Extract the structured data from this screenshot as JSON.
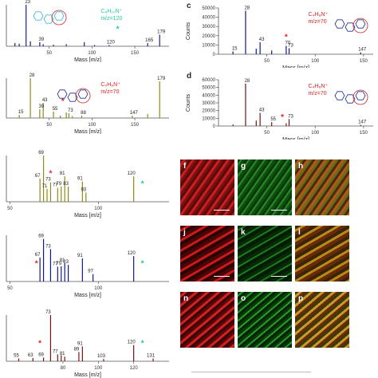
{
  "panel_labels": {
    "c": "c",
    "d": "d",
    "f": "f",
    "g": "g",
    "h": "h",
    "j": "j",
    "k": "k",
    "l": "l",
    "n": "n",
    "o": "o",
    "p": "p"
  },
  "colors": {
    "blue": "#1a237e",
    "olive": "#8d8a1a",
    "navy": "#0b1a8a",
    "maroon": "#7b1010",
    "red": "#e02020",
    "green": "#1ec8a0",
    "cyan_struct": "#36b6e0",
    "navy_struct": "#1a2f8a",
    "red_struct": "#cc2222"
  },
  "chart_data": [
    {
      "id": "a",
      "type": "bar",
      "color": "#1a237e",
      "xlabel": "Mass [m/z]",
      "xlim": [
        0,
        190
      ],
      "xticks": [
        50,
        100,
        150
      ],
      "ion": {
        "text": "C₈H₁₀N⁺",
        "mz": "m/z=120",
        "color": "#1ec8a0"
      },
      "peaks": [
        [
          10,
          8
        ],
        [
          15,
          6
        ],
        [
          23,
          100
        ],
        [
          28,
          12
        ],
        [
          39,
          10
        ],
        [
          43,
          5
        ],
        [
          55,
          4
        ],
        [
          70,
          5
        ],
        [
          91,
          10
        ],
        [
          103,
          3
        ],
        [
          120,
          3
        ],
        [
          165,
          8
        ],
        [
          179,
          28
        ]
      ],
      "labels": [
        {
          "x": 23,
          "t": "23"
        },
        {
          "x": 39,
          "t": "39"
        },
        {
          "x": 120,
          "t": "120"
        },
        {
          "x": 165,
          "t": "165"
        },
        {
          "x": 179,
          "t": "179"
        }
      ],
      "star": {
        "x": 130,
        "color": "#1ec8a0"
      }
    },
    {
      "id": "b",
      "type": "bar",
      "color": "#8d8a1a",
      "xlabel": "Mass [m/z]",
      "xlim": [
        0,
        190
      ],
      "xticks": [
        50,
        100,
        150
      ],
      "ion": {
        "text": "C₄H₈N⁺",
        "mz": "m/z=70",
        "color": "#e02020"
      },
      "peaks": [
        [
          15,
          8
        ],
        [
          28,
          100
        ],
        [
          39,
          22
        ],
        [
          43,
          38
        ],
        [
          55,
          16
        ],
        [
          63,
          6
        ],
        [
          70,
          14
        ],
        [
          73,
          12
        ],
        [
          77,
          5
        ],
        [
          88,
          6
        ],
        [
          147,
          6
        ],
        [
          165,
          10
        ],
        [
          179,
          92
        ]
      ],
      "labels": [
        {
          "x": 15,
          "t": "15"
        },
        {
          "x": 28,
          "t": "28"
        },
        {
          "x": 39,
          "t": "39"
        },
        {
          "x": 43,
          "t": "43"
        },
        {
          "x": 55,
          "t": "55"
        },
        {
          "x": 73,
          "t": "73"
        },
        {
          "x": 88,
          "t": "88"
        },
        {
          "x": 147,
          "t": "147"
        },
        {
          "x": 179,
          "t": "179"
        }
      ],
      "star": {
        "x": 66,
        "color": "#e02020"
      }
    },
    {
      "id": "c",
      "type": "bar",
      "color": "#0b1a8a",
      "xlabel": "Mass [m/z]",
      "ylabel": "Counts",
      "xlim": [
        0,
        160
      ],
      "ylim": [
        0,
        50000
      ],
      "yticks": [
        "0",
        "10000",
        "20000",
        "30000",
        "40000",
        "50000"
      ],
      "xticks": [
        50,
        100,
        150
      ],
      "ion": {
        "text": "C₄H₈N⁺",
        "mz": "m/z=70",
        "color": "#e02020"
      },
      "peaks": [
        [
          15,
          3000
        ],
        [
          28,
          47000
        ],
        [
          39,
          6000
        ],
        [
          43,
          13000
        ],
        [
          55,
          4000
        ],
        [
          70,
          9000
        ],
        [
          73,
          6500
        ],
        [
          147,
          2000
        ]
      ],
      "labels": [
        {
          "x": 15,
          "t": "15"
        },
        {
          "x": 28,
          "t": "28"
        },
        {
          "x": 43,
          "t": "43"
        },
        {
          "x": 70,
          "t": "70"
        },
        {
          "x": 73,
          "t": "73"
        },
        {
          "x": 147,
          "t": "147"
        }
      ],
      "star": {
        "x": 70,
        "color": "#e02020"
      }
    },
    {
      "id": "d",
      "type": "bar",
      "color": "#7b1010",
      "xlabel": "Mass [m/z]",
      "ylabel": "Counts",
      "xlim": [
        0,
        160
      ],
      "ylim": [
        0,
        60000
      ],
      "yticks": [
        "0",
        "10000",
        "20000",
        "30000",
        "40000",
        "50000",
        "60000"
      ],
      "xticks": [
        50,
        100,
        150
      ],
      "ion": {
        "text": "C₄H₈N⁺",
        "mz": "m/z=70",
        "color": "#e02020"
      },
      "peaks": [
        [
          15,
          2000
        ],
        [
          28,
          55000
        ],
        [
          39,
          7000
        ],
        [
          43,
          17000
        ],
        [
          55,
          5000
        ],
        [
          70,
          3500
        ],
        [
          73,
          9000
        ],
        [
          147,
          1500
        ]
      ],
      "labels": [
        {
          "x": 28,
          "t": "28"
        },
        {
          "x": 43,
          "t": "43"
        },
        {
          "x": 55,
          "t": "55"
        },
        {
          "x": 73,
          "t": "73"
        },
        {
          "x": 147,
          "t": "147"
        }
      ],
      "star": {
        "x": 66,
        "color": "#e02020"
      }
    },
    {
      "id": "e1",
      "type": "bar",
      "color": "#8d8a1a",
      "xlabel": "Mass [m/z]",
      "xlim": [
        48,
        140
      ],
      "xticks": [
        0,
        50,
        100
      ],
      "peaks": [
        [
          67,
          50
        ],
        [
          69,
          100
        ],
        [
          71,
          28
        ],
        [
          73,
          42
        ],
        [
          77,
          30
        ],
        [
          79,
          33
        ],
        [
          81,
          55
        ],
        [
          83,
          33
        ],
        [
          91,
          44
        ],
        [
          93,
          20
        ],
        [
          120,
          55
        ]
      ],
      "labels": [
        {
          "x": 67,
          "t": "67"
        },
        {
          "x": 69,
          "t": "69"
        },
        {
          "x": 71,
          "t": "71"
        },
        {
          "x": 73,
          "t": "73"
        },
        {
          "x": 77,
          "t": "77"
        },
        {
          "x": 79,
          "t": "79"
        },
        {
          "x": 81,
          "t": "81"
        },
        {
          "x": 83,
          "t": "83"
        },
        {
          "x": 91,
          "t": "91"
        },
        {
          "x": 93,
          "t": "93"
        },
        {
          "x": 120,
          "t": "120"
        }
      ],
      "stars": [
        {
          "x": 73,
          "color": "#e02020"
        },
        {
          "x": 125,
          "color": "#1ec8a0"
        }
      ]
    },
    {
      "id": "e2",
      "type": "bar",
      "color": "#0b1a8a",
      "xlabel": "Mass [m/z]",
      "xlim": [
        48,
        140
      ],
      "xticks": [
        50,
        100
      ],
      "peaks": [
        [
          67,
          52
        ],
        [
          69,
          92
        ],
        [
          73,
          70
        ],
        [
          77,
          32
        ],
        [
          79,
          33
        ],
        [
          81,
          40
        ],
        [
          83,
          36
        ],
        [
          91,
          50
        ],
        [
          97,
          16
        ],
        [
          120,
          55
        ]
      ],
      "labels": [
        {
          "x": 67,
          "t": "67"
        },
        {
          "x": 69,
          "t": "69"
        },
        {
          "x": 73,
          "t": "73"
        },
        {
          "x": 77,
          "t": "77"
        },
        {
          "x": 79,
          "t": "79"
        },
        {
          "x": 81,
          "t": "81"
        },
        {
          "x": 83,
          "t": "83"
        },
        {
          "x": 91,
          "t": "91"
        },
        {
          "x": 97,
          "t": "97"
        },
        {
          "x": 120,
          "t": "120"
        }
      ],
      "stars": [
        {
          "x": 65,
          "color": "#e02020"
        },
        {
          "x": 125,
          "color": "#1ec8a0"
        }
      ]
    },
    {
      "id": "e3",
      "type": "bar",
      "color": "#7b1010",
      "xlabel": "Mass [m/z]",
      "xlim": [
        48,
        140
      ],
      "xticks": [
        80,
        100,
        120
      ],
      "peaks": [
        [
          55,
          6
        ],
        [
          63,
          7
        ],
        [
          69,
          8
        ],
        [
          73,
          100
        ],
        [
          77,
          15
        ],
        [
          79,
          13
        ],
        [
          81,
          10
        ],
        [
          89,
          20
        ],
        [
          91,
          32
        ],
        [
          103,
          5
        ],
        [
          120,
          35
        ],
        [
          131,
          6
        ]
      ],
      "labels": [
        {
          "x": 55,
          "t": "55"
        },
        {
          "x": 63,
          "t": "63"
        },
        {
          "x": 69,
          "t": "69"
        },
        {
          "x": 73,
          "t": "73"
        },
        {
          "x": 77,
          "t": "77"
        },
        {
          "x": 81,
          "t": "81"
        },
        {
          "x": 89,
          "t": "89"
        },
        {
          "x": 91,
          "t": "91"
        },
        {
          "x": 103,
          "t": "103"
        },
        {
          "x": 120,
          "t": "120"
        },
        {
          "x": 131,
          "t": "131"
        }
      ],
      "stars": [
        {
          "x": 67,
          "color": "#e02020"
        },
        {
          "x": 125,
          "color": "#1ec8a0"
        }
      ]
    }
  ]
}
